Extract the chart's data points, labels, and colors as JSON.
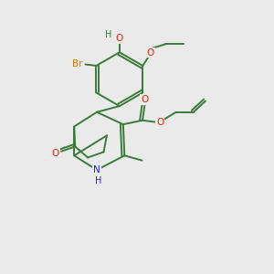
{
  "background_color": "#eaeaea",
  "bond_color": "#3a7a3a",
  "atom_colors": {
    "O": "#e82200",
    "N": "#1a1aff",
    "Br": "#cc7700",
    "C": "#3a7a3a"
  }
}
